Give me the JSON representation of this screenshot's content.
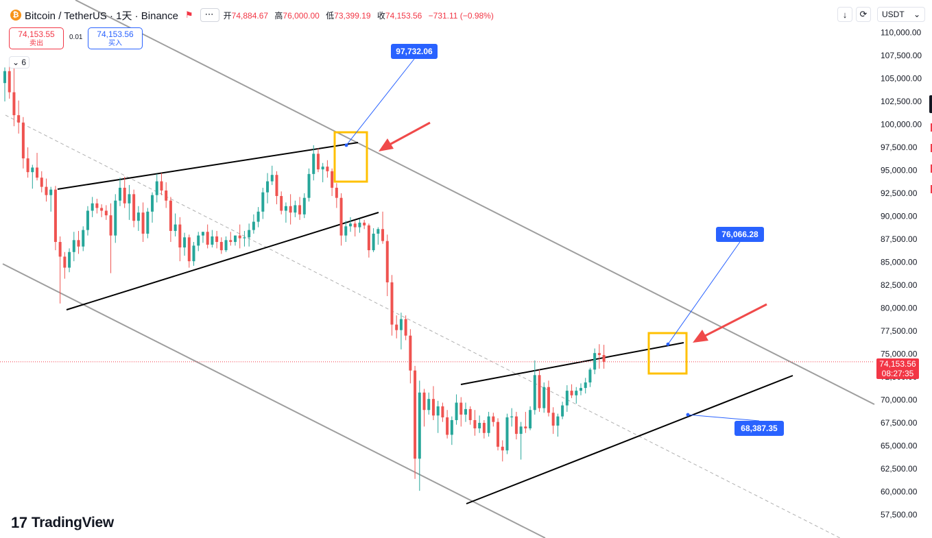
{
  "header": {
    "coin_glyph": "₿",
    "symbol_title": "Bitcoin / TetherUS · 1天 · Binance",
    "flag_icon": "flag-icon",
    "more_label": "⋯",
    "open_label": "开",
    "open_value": "74,884.67",
    "high_label": "高",
    "high_value": "76,000.00",
    "low_label": "低",
    "low_value": "73,399.19",
    "close_label": "收",
    "close_value": "74,153.56",
    "change_value": "−731.11 (−0.98%)"
  },
  "trade": {
    "sell_price": "74,153.55",
    "sell_label": "卖出",
    "spread": "0.01",
    "buy_price": "74,153.56",
    "buy_label": "买入"
  },
  "indicators_collapsed": {
    "chevron": "⌄",
    "count": "6"
  },
  "toolbar": {
    "download_icon": "↓",
    "reset_icon": "⟳",
    "currency": "USDT",
    "currency_chevron": "⌄"
  },
  "logo": {
    "mark": "17",
    "text": "TradingView"
  },
  "colors": {
    "up": "#26a69a",
    "down": "#ef5350",
    "accent": "#2962ff",
    "price_tag": "#f23645",
    "highlight_box": "#ffc000"
  },
  "chart_data": {
    "type": "candlestick",
    "interval": "1天",
    "exchange": "Binance",
    "currency": "USDT",
    "y_scale": "linear",
    "ylim": [
      56000,
      111000
    ],
    "y_ticks": [
      "110,000.00",
      "107,500.00",
      "105,000.00",
      "102,500.00",
      "100,000.00",
      "97,500.00",
      "95,000.00",
      "92,500.00",
      "90,000.00",
      "87,500.00",
      "85,000.00",
      "82,500.00",
      "80,000.00",
      "77,500.00",
      "75,000.00",
      "72,500.00",
      "70,000.00",
      "67,500.00",
      "65,000.00",
      "62,500.00",
      "60,000.00",
      "57,500.00"
    ],
    "last_price": "74,153.56",
    "countdown": "08:27:35",
    "annotations": [
      {
        "label": "97,732.06",
        "price": 97732.06
      },
      {
        "label": "76,066.28",
        "price": 76066.28
      },
      {
        "label": "68,387.35",
        "price": 68387.35
      }
    ],
    "candles": [
      [
        104500,
        106200,
        102500,
        105800
      ],
      [
        105800,
        106500,
        102800,
        103500
      ],
      [
        103500,
        106100,
        99800,
        101000
      ],
      [
        101000,
        102600,
        99000,
        100200
      ],
      [
        100200,
        100800,
        95200,
        96300
      ],
      [
        96300,
        97500,
        94200,
        94800
      ],
      [
        94800,
        95600,
        93000,
        95300
      ],
      [
        95300,
        96900,
        93900,
        94200
      ],
      [
        94200,
        94900,
        92600,
        93200
      ],
      [
        93200,
        94100,
        91600,
        92300
      ],
      [
        92300,
        93200,
        90500,
        92900
      ],
      [
        92900,
        93300,
        86300,
        87200
      ],
      [
        87200,
        87800,
        80500,
        85600
      ],
      [
        85600,
        86100,
        83200,
        84400
      ],
      [
        84400,
        86500,
        83900,
        86100
      ],
      [
        86100,
        88300,
        85100,
        87400
      ],
      [
        87400,
        88400,
        85900,
        86700
      ],
      [
        86700,
        88900,
        86200,
        88500
      ],
      [
        88500,
        91100,
        87900,
        90600
      ],
      [
        90600,
        92100,
        89900,
        91400
      ],
      [
        91400,
        91900,
        90300,
        90900
      ],
      [
        90900,
        91300,
        89900,
        90600
      ],
      [
        90600,
        91200,
        89600,
        90100
      ],
      [
        90100,
        91400,
        83800,
        87900
      ],
      [
        87900,
        92400,
        87100,
        91700
      ],
      [
        91700,
        94200,
        91100,
        93100
      ],
      [
        93100,
        94300,
        90900,
        91400
      ],
      [
        91400,
        93400,
        89600,
        92400
      ],
      [
        92400,
        92900,
        88800,
        89500
      ],
      [
        89500,
        91100,
        88400,
        90400
      ],
      [
        90400,
        91500,
        87200,
        88100
      ],
      [
        88100,
        90900,
        87600,
        90500
      ],
      [
        90500,
        92600,
        89300,
        92300
      ],
      [
        92300,
        94600,
        91500,
        93800
      ],
      [
        93800,
        94700,
        92300,
        92800
      ],
      [
        92800,
        93700,
        90900,
        91700
      ],
      [
        91700,
        92100,
        87200,
        88400
      ],
      [
        88400,
        90300,
        87800,
        89100
      ],
      [
        89100,
        89900,
        85100,
        86600
      ],
      [
        86600,
        88200,
        85700,
        87700
      ],
      [
        87700,
        88000,
        84400,
        85100
      ],
      [
        85100,
        87200,
        84600,
        86800
      ],
      [
        86800,
        88300,
        86200,
        87900
      ],
      [
        87900,
        88300,
        87100,
        88300
      ],
      [
        88300,
        89100,
        86500,
        86900
      ],
      [
        86900,
        88500,
        86600,
        87800
      ],
      [
        87800,
        88400,
        86500,
        87200
      ],
      [
        87200,
        87700,
        85900,
        86300
      ],
      [
        86300,
        87800,
        86100,
        87400
      ],
      [
        87400,
        88300,
        86800,
        87200
      ],
      [
        87200,
        87900,
        86800,
        87900
      ],
      [
        87900,
        89100,
        86500,
        87600
      ],
      [
        87600,
        88400,
        86700,
        87700
      ],
      [
        87700,
        89200,
        86700,
        88500
      ],
      [
        88500,
        90200,
        88100,
        89400
      ],
      [
        89400,
        91000,
        88800,
        90500
      ],
      [
        90500,
        93100,
        89700,
        92600
      ],
      [
        92600,
        94700,
        91400,
        93800
      ],
      [
        93800,
        95500,
        93400,
        94500
      ],
      [
        94500,
        94900,
        91300,
        92200
      ],
      [
        92200,
        92700,
        90200,
        90600
      ],
      [
        90600,
        91500,
        89300,
        91100
      ],
      [
        91100,
        92400,
        89100,
        90400
      ],
      [
        90400,
        91700,
        89900,
        91200
      ],
      [
        91200,
        92100,
        89600,
        90200
      ],
      [
        90200,
        92500,
        89800,
        92000
      ],
      [
        92000,
        95200,
        91600,
        94600
      ],
      [
        94600,
        97732,
        93900,
        96800
      ],
      [
        96800,
        97400,
        94800,
        95100
      ],
      [
        95100,
        95800,
        93700,
        95400
      ],
      [
        95400,
        96100,
        94200,
        94900
      ],
      [
        94900,
        95200,
        92200,
        93100
      ],
      [
        93100,
        93600,
        90900,
        92000
      ],
      [
        92000,
        92500,
        86800,
        87900
      ],
      [
        87900,
        89500,
        87200,
        88900
      ],
      [
        88900,
        89900,
        88300,
        89200
      ],
      [
        89200,
        89500,
        87800,
        88800
      ],
      [
        88800,
        89700,
        88200,
        89300
      ],
      [
        89300,
        89600,
        88600,
        89000
      ],
      [
        89000,
        89200,
        85500,
        86300
      ],
      [
        86300,
        88700,
        86100,
        88100
      ],
      [
        88100,
        88800,
        86900,
        88600
      ],
      [
        88600,
        90500,
        87000,
        87300
      ],
      [
        87300,
        88000,
        81300,
        82800
      ],
      [
        82800,
        83600,
        77000,
        78200
      ],
      [
        78200,
        79200,
        76700,
        77600
      ],
      [
        77600,
        79500,
        75500,
        78800
      ],
      [
        78800,
        79200,
        76500,
        77000
      ],
      [
        77000,
        77700,
        71800,
        73200
      ],
      [
        73200,
        73700,
        61400,
        63600
      ],
      [
        63600,
        72100,
        60100,
        70800
      ],
      [
        70800,
        71200,
        67100,
        68900
      ],
      [
        68900,
        70800,
        68400,
        70100
      ],
      [
        70100,
        71500,
        67800,
        68300
      ],
      [
        68300,
        69900,
        66400,
        69300
      ],
      [
        69300,
        69700,
        67600,
        68100
      ],
      [
        68100,
        68900,
        65800,
        66200
      ],
      [
        66200,
        68200,
        65100,
        67800
      ],
      [
        67800,
        70600,
        67300,
        69700
      ],
      [
        69700,
        70300,
        67100,
        68400
      ],
      [
        68400,
        69700,
        67600,
        69000
      ],
      [
        69000,
        69300,
        67300,
        67800
      ],
      [
        67800,
        68900,
        66100,
        66900
      ],
      [
        66900,
        68300,
        66400,
        67500
      ],
      [
        67500,
        67800,
        65800,
        66400
      ],
      [
        66400,
        68700,
        66000,
        68200
      ],
      [
        68200,
        68600,
        67100,
        67600
      ],
      [
        67600,
        68000,
        64500,
        64900
      ],
      [
        64900,
        65600,
        63300,
        64500
      ],
      [
        64500,
        68500,
        64100,
        68100
      ],
      [
        68100,
        69100,
        67100,
        68200
      ],
      [
        68200,
        68700,
        65700,
        66300
      ],
      [
        66300,
        67600,
        63500,
        67100
      ],
      [
        67100,
        68700,
        66400,
        66900
      ],
      [
        66900,
        69300,
        66700,
        68900
      ],
      [
        68900,
        74300,
        68400,
        72700
      ],
      [
        72700,
        73300,
        68700,
        69100
      ],
      [
        69100,
        71900,
        68600,
        71400
      ],
      [
        71400,
        72100,
        68200,
        68600
      ],
      [
        68600,
        69200,
        66300,
        67200
      ],
      [
        67200,
        68500,
        66000,
        68200
      ],
      [
        68200,
        69800,
        67900,
        69400
      ],
      [
        69400,
        71600,
        68700,
        71000
      ],
      [
        71000,
        71700,
        70200,
        70500
      ],
      [
        70500,
        71400,
        69600,
        71000
      ],
      [
        71000,
        71800,
        70500,
        71300
      ],
      [
        71300,
        72400,
        70700,
        71900
      ],
      [
        71900,
        73500,
        71400,
        73300
      ],
      [
        73300,
        75600,
        72800,
        75100
      ],
      [
        75100,
        76066,
        73400,
        74884.67
      ],
      [
        74884.67,
        76000,
        73399.19,
        74153.56
      ]
    ]
  }
}
